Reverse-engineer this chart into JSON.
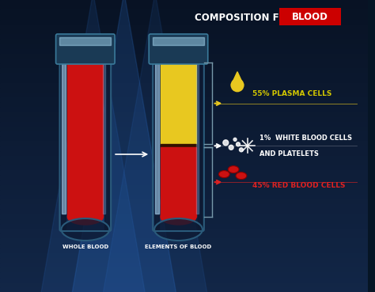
{
  "title1": "COMPOSITION FO",
  "title2": "BLOOD",
  "title2_bg": "#cc0000",
  "bg_top": "#061525",
  "bg_bottom": "#0a2040",
  "tube1_label": "WHOLE BLOOD",
  "tube2_label": "ELEMENTS OF BLOOD",
  "plasma_label": "55% PLASMA CELLS",
  "wbc_label1": "1%  WHITE BLOOD CELLS",
  "wbc_label2": "AND PLATELETS",
  "rbc_label": "45% RED BLOOD CELLS",
  "plasma_color": "#e8c820",
  "rbc_color_fill": "#cc1111",
  "rbc_color_dark": "#8b0000",
  "plasma_text_color": "#d4c800",
  "rbc_text_color": "#dd2222",
  "wbc_text_color": "#ffffff",
  "tube_fill_red": "#cc1111",
  "tube_fill_red_dark": "#8b0000",
  "tube_fill_yellow": "#e8c820",
  "tube_fill_yellow_light": "#f0d840",
  "glass_color": "#2a5a7a",
  "glass_rim": "#3a7a9a",
  "glass_highlight": "#aaddff",
  "bracket_color": "#7799aa"
}
